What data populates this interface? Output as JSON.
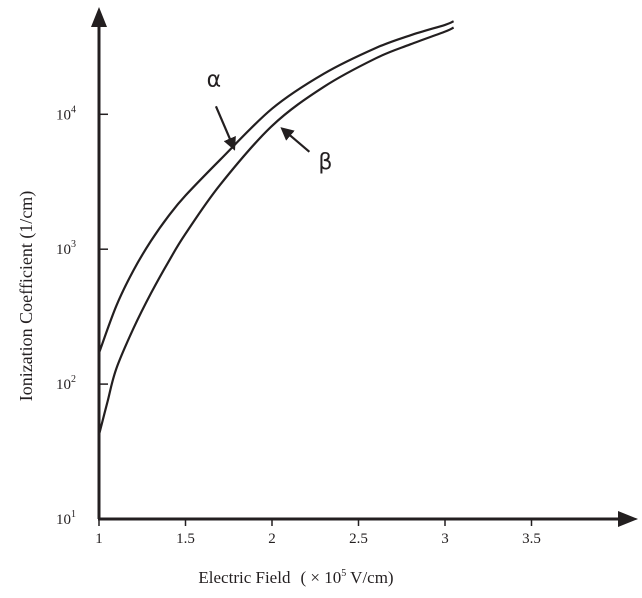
{
  "chart_data": {
    "type": "line",
    "xlabel": "Electric Field",
    "xlabel_unit_prefix": "( × 10",
    "xlabel_unit_exp": "5",
    "xlabel_unit_suffix": " V/cm)",
    "ylabel": "Ionization Coefficient (1/cm)",
    "xlim": [
      1,
      4.0
    ],
    "ylim": [
      10,
      50000
    ],
    "yscale": "log",
    "grid": false,
    "x_ticks": [
      {
        "value": 1,
        "label": "1"
      },
      {
        "value": 1.5,
        "label": "1.5"
      },
      {
        "value": 2,
        "label": "2"
      },
      {
        "value": 2.5,
        "label": "2.5"
      },
      {
        "value": 3,
        "label": "3"
      },
      {
        "value": 3.5,
        "label": "3.5"
      }
    ],
    "y_ticks": [
      {
        "value": 10,
        "base": "10",
        "exp": "1"
      },
      {
        "value": 100,
        "base": "10",
        "exp": "2"
      },
      {
        "value": 1000,
        "base": "10",
        "exp": "3"
      },
      {
        "value": 10000,
        "base": "10",
        "exp": "4"
      }
    ],
    "series": [
      {
        "name": "α",
        "x": [
          1.0,
          1.1,
          1.2,
          1.3,
          1.4,
          1.5,
          1.7,
          2.0,
          2.3,
          2.6,
          2.8,
          3.0,
          3.05
        ],
        "y": [
          170,
          380,
          700,
          1150,
          1750,
          2500,
          4600,
          11000,
          20000,
          31000,
          38500,
          46000,
          49000
        ]
      },
      {
        "name": "β",
        "x": [
          1.0,
          1.05,
          1.1,
          1.2,
          1.3,
          1.4,
          1.5,
          1.7,
          2.0,
          2.3,
          2.6,
          2.8,
          3.0,
          3.05
        ],
        "y": [
          42,
          75,
          130,
          260,
          470,
          800,
          1300,
          3000,
          8200,
          16000,
          26000,
          33000,
          41000,
          44000
        ]
      }
    ],
    "annotations": [
      {
        "text": "α",
        "series": "α",
        "x": 1.78,
        "y": 5600
      },
      {
        "text": "β",
        "series": "β",
        "x": 2.06,
        "y": 7800
      }
    ],
    "colors": {
      "line": "#231f20",
      "background": "#ffffff"
    }
  }
}
